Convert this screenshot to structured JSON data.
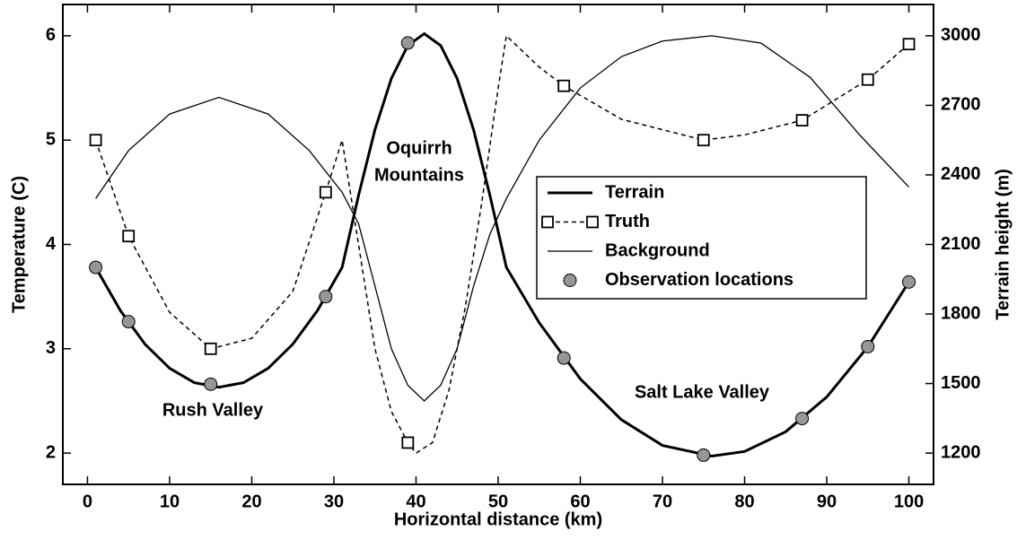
{
  "chart_data": {
    "type": "line",
    "xlabel": "Horizontal distance (km)",
    "ylabel": "Temperature (C)",
    "y2label": "Terrain height (m)",
    "xlim": [
      -3,
      103
    ],
    "xticks": [
      0,
      10,
      20,
      30,
      40,
      50,
      60,
      70,
      80,
      90,
      100
    ],
    "ylim": [
      1.7,
      6.3
    ],
    "yticks": [
      2,
      3,
      4,
      5,
      6
    ],
    "y2lim": [
      1065,
      3135
    ],
    "y2ticks": [
      1200,
      1500,
      1800,
      2100,
      2400,
      2700,
      3000
    ],
    "legend": "center-right",
    "annotations": [
      "Rush Valley",
      "Oquirrh",
      "Mountains",
      "Salt Lake Valley"
    ],
    "series": [
      {
        "name": "Terrain",
        "color": "#000000",
        "axis": "y2",
        "linestyle": "solid",
        "linewidth": 3,
        "marker": "none",
        "x": [
          1,
          4,
          7,
          10,
          13,
          16,
          19,
          22,
          25,
          28,
          31,
          33,
          35,
          37,
          39,
          41,
          43,
          45,
          47,
          49,
          51,
          55,
          60,
          65,
          70,
          76,
          80,
          85,
          90,
          95,
          100
        ],
        "values": [
          2001,
          1815,
          1670,
          1566,
          1504,
          1484,
          1504,
          1566,
          1670,
          1815,
          2001,
          2311,
          2595,
          2816,
          2958,
          3009,
          2958,
          2816,
          2595,
          2311,
          2001,
          1762,
          1520,
          1344,
          1233,
          1187,
          1207,
          1292,
          1442,
          1658,
          1938
        ]
      },
      {
        "name": "Truth",
        "color": "#000000",
        "linestyle": "dashed",
        "linewidth": 1.5,
        "marker": "square",
        "x": [
          1,
          5,
          10,
          15,
          20,
          25,
          29,
          31,
          33,
          35,
          37,
          39,
          40,
          42,
          44,
          46,
          48,
          50,
          51,
          55,
          58,
          65,
          75,
          80,
          87,
          95,
          100
        ],
        "values": [
          5.0,
          4.08,
          3.35,
          3.0,
          3.1,
          3.55,
          4.5,
          5.0,
          4.0,
          3.0,
          2.4,
          2.1,
          2.0,
          2.1,
          2.6,
          3.4,
          4.4,
          5.5,
          6.0,
          5.7,
          5.52,
          5.2,
          5.0,
          5.05,
          5.19,
          5.58,
          5.92
        ]
      },
      {
        "name": "Background",
        "color": "#000000",
        "linestyle": "solid",
        "linewidth": 1.3,
        "marker": "none",
        "x": [
          1,
          5,
          10,
          16,
          22,
          27,
          31,
          33,
          35,
          37,
          39,
          41,
          43,
          45,
          47,
          49,
          51,
          55,
          60,
          65,
          70,
          76,
          82,
          88,
          94,
          100
        ],
        "values": [
          4.44,
          4.9,
          5.25,
          5.41,
          5.25,
          4.9,
          4.5,
          4.2,
          3.6,
          3.0,
          2.65,
          2.5,
          2.65,
          3.0,
          3.6,
          4.1,
          4.44,
          5.0,
          5.5,
          5.8,
          5.95,
          6.0,
          5.93,
          5.6,
          5.05,
          4.55
        ]
      },
      {
        "name": "Observation locations",
        "color": "#000000",
        "axis": "y2",
        "linestyle": "none",
        "marker": "circle",
        "x": [
          1,
          5,
          15,
          29,
          39,
          58,
          75,
          87,
          95,
          100
        ],
        "values": [
          2001,
          1767,
          1497,
          1875,
          2969,
          1610,
          1191,
          1349,
          1659,
          1938
        ]
      }
    ]
  }
}
